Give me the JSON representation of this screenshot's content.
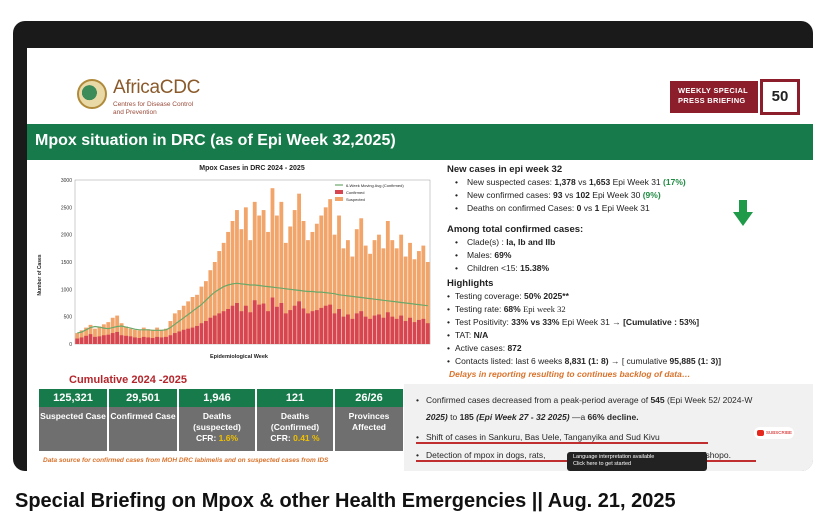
{
  "logo": {
    "name": "AfricaCDC",
    "sub": "Centres for Disease Control and Prevention"
  },
  "weekly": {
    "line1": "WEEKLY SPECIAL",
    "line2": "PRESS BRIEFING",
    "number": "50"
  },
  "slide_title": "Mpox situation in DRC (as of Epi Week 32,2025)",
  "chart_data": {
    "type": "bar",
    "title": "Mpox Cases in DRC 2024 - 2025",
    "xlabel": "Epidemiological Week",
    "ylabel": "Number of Cases",
    "ylim": [
      0,
      3000
    ],
    "yticks": [
      "0",
      "500",
      "1000",
      "1500",
      "2000",
      "2500",
      "3000"
    ],
    "series": [
      {
        "name": "6-Week Moving Avg (Confirmed)",
        "color": "#6aa86a"
      },
      {
        "name": "Confirmed",
        "color": "#d64550"
      },
      {
        "name": "Suspected",
        "color": "#f2a56b"
      }
    ],
    "suspected": [
      200,
      250,
      300,
      350,
      280,
      320,
      360,
      400,
      480,
      520,
      380,
      320,
      280,
      260,
      250,
      300,
      270,
      260,
      300,
      260,
      280,
      420,
      560,
      620,
      700,
      780,
      860,
      900,
      1050,
      1150,
      1350,
      1500,
      1700,
      1850,
      2050,
      2250,
      2450,
      2100,
      2500,
      1900,
      2600,
      2350,
      2450,
      2050,
      2850,
      2350,
      2600,
      1850,
      2150,
      2450,
      2750,
      2250,
      1900,
      2050,
      2200,
      2350,
      2500,
      2650,
      2000,
      2350,
      1750,
      1900,
      1600,
      2100,
      2300,
      1800,
      1650,
      1900,
      2000,
      1750,
      2250,
      1900,
      1750,
      2000,
      1600,
      1850,
      1550,
      1700,
      1800,
      1500
    ],
    "confirmed": [
      100,
      120,
      150,
      180,
      130,
      140,
      160,
      170,
      200,
      220,
      160,
      150,
      140,
      120,
      110,
      130,
      120,
      110,
      130,
      120,
      130,
      160,
      200,
      230,
      260,
      280,
      300,
      330,
      380,
      420,
      480,
      520,
      560,
      600,
      640,
      700,
      750,
      600,
      700,
      580,
      800,
      720,
      740,
      600,
      850,
      680,
      750,
      560,
      620,
      700,
      780,
      650,
      560,
      600,
      620,
      660,
      700,
      720,
      560,
      640,
      500,
      540,
      460,
      560,
      600,
      500,
      460,
      520,
      540,
      480,
      580,
      500,
      460,
      520,
      420,
      480,
      400,
      440,
      460,
      380
    ],
    "moving_avg": [
      200,
      220,
      260,
      300,
      320,
      310,
      290,
      280,
      300,
      320,
      330,
      310,
      290,
      270,
      260,
      260,
      260,
      250,
      250,
      250,
      260,
      300,
      360,
      420,
      480,
      540,
      600,
      660,
      720,
      800,
      880,
      950,
      1000,
      1050,
      1080,
      1100,
      1110,
      1100,
      1090,
      1080,
      1080,
      1070,
      1060,
      1050,
      1040,
      1030,
      1020,
      1010,
      1000,
      990,
      980,
      970,
      960,
      960,
      950,
      950,
      940,
      930,
      920,
      900,
      890,
      880,
      870,
      860,
      850,
      840,
      830,
      820,
      810,
      800,
      790,
      780,
      770,
      760,
      750,
      740,
      730,
      720,
      710,
      700
    ]
  },
  "right": {
    "new_cases_title": "New cases in epi week 32",
    "li1_pre": "New suspected cases:",
    "li1_b": "1,378",
    "li1_mid": "vs",
    "li1_b2": "1,653",
    "li1_post": "Epi Week 31",
    "li1_pct": "(17%)",
    "li2_pre": "New confirmed cases:",
    "li2_b": "93",
    "li2_mid": "vs",
    "li2_b2": "102",
    "li2_post": "Epi Week 30",
    "li2_pct": "(9%)",
    "li3_pre": "Deaths on confirmed Cases:",
    "li3_b": "0",
    "li3_mid": "vs",
    "li3_b2": "1",
    "li3_post": "Epi Week 31",
    "total_title": "Among total confirmed cases:",
    "t1": "Clade(s) :",
    "t1b": "Ia, Ib and IIb",
    "t2": "Males:",
    "t2b": "69%",
    "t3": "Children <15:",
    "t3b": "15.38%",
    "highlights_title": "Highlights",
    "h1": "Testing coverage:",
    "h1b": "50% 2025**",
    "h2": "Testing rate:",
    "h2b": "68%",
    "h2c": "Epi week 32",
    "h3": "Test Positivity:",
    "h3b": "33% vs 33%",
    "h3c": "Epi Week 31  →",
    "h3d": "[Cumulative : 53%]",
    "h4": "TAT:",
    "h4b": "N/A",
    "h5": "Active cases:",
    "h5b": "872",
    "h6": "Contacts listed: last 6 weeks",
    "h6b": "8,831 (1: 8)",
    "h6c": "→ [ cumulative",
    "h6d": "95,885 (1: 3)]",
    "delays": "Delays in reporting resulting to continues backlog of data…"
  },
  "cumulative": {
    "title": "Cumulative 2024 -2025",
    "stats": [
      {
        "value": "125,321",
        "label": "Suspected Case",
        "cfr": ""
      },
      {
        "value": "29,501",
        "label": "Confirmed Case",
        "cfr": ""
      },
      {
        "value": "1,946",
        "label": "Deaths (suspected)",
        "cfr_pre": "CFR:",
        "cfr": "1.6%"
      },
      {
        "value": "121",
        "label": "Deaths (Confirmed)",
        "cfr_pre": "CFR:",
        "cfr": "0.41 %"
      },
      {
        "value": "26/26",
        "label": "Provinces Affected",
        "cfr": ""
      }
    ],
    "source": "Data source for confirmed cases from MOH DRC labimelis and on suspected cases from IDS"
  },
  "overlay": {
    "o1a": "Confirmed cases decreased from a peak-period average of",
    "o1b": "545",
    "o1c": "(Epi Week 52/ 2024-W",
    "o1d": "2025)",
    "o1e": "to",
    "o1f": "185",
    "o1g": "(Epi Week 27 - 32 2025)",
    "o1h": "—a",
    "o1i": "66% decline.",
    "o2": "Shift of cases in Sankuru, Bas Uele, Tanganyika and Sud Kivu",
    "o3a": "Detection of mpox in dogs, rats,",
    "o3b": "nd Tshopo.",
    "subscribe": "SUBSCRIBE"
  },
  "tooltip": {
    "line1": "Language interpretation available",
    "line2": "Click here to get started"
  },
  "video_title": "Special Briefing on Mpox & other Health Emergencies || Aug. 21, 2025"
}
